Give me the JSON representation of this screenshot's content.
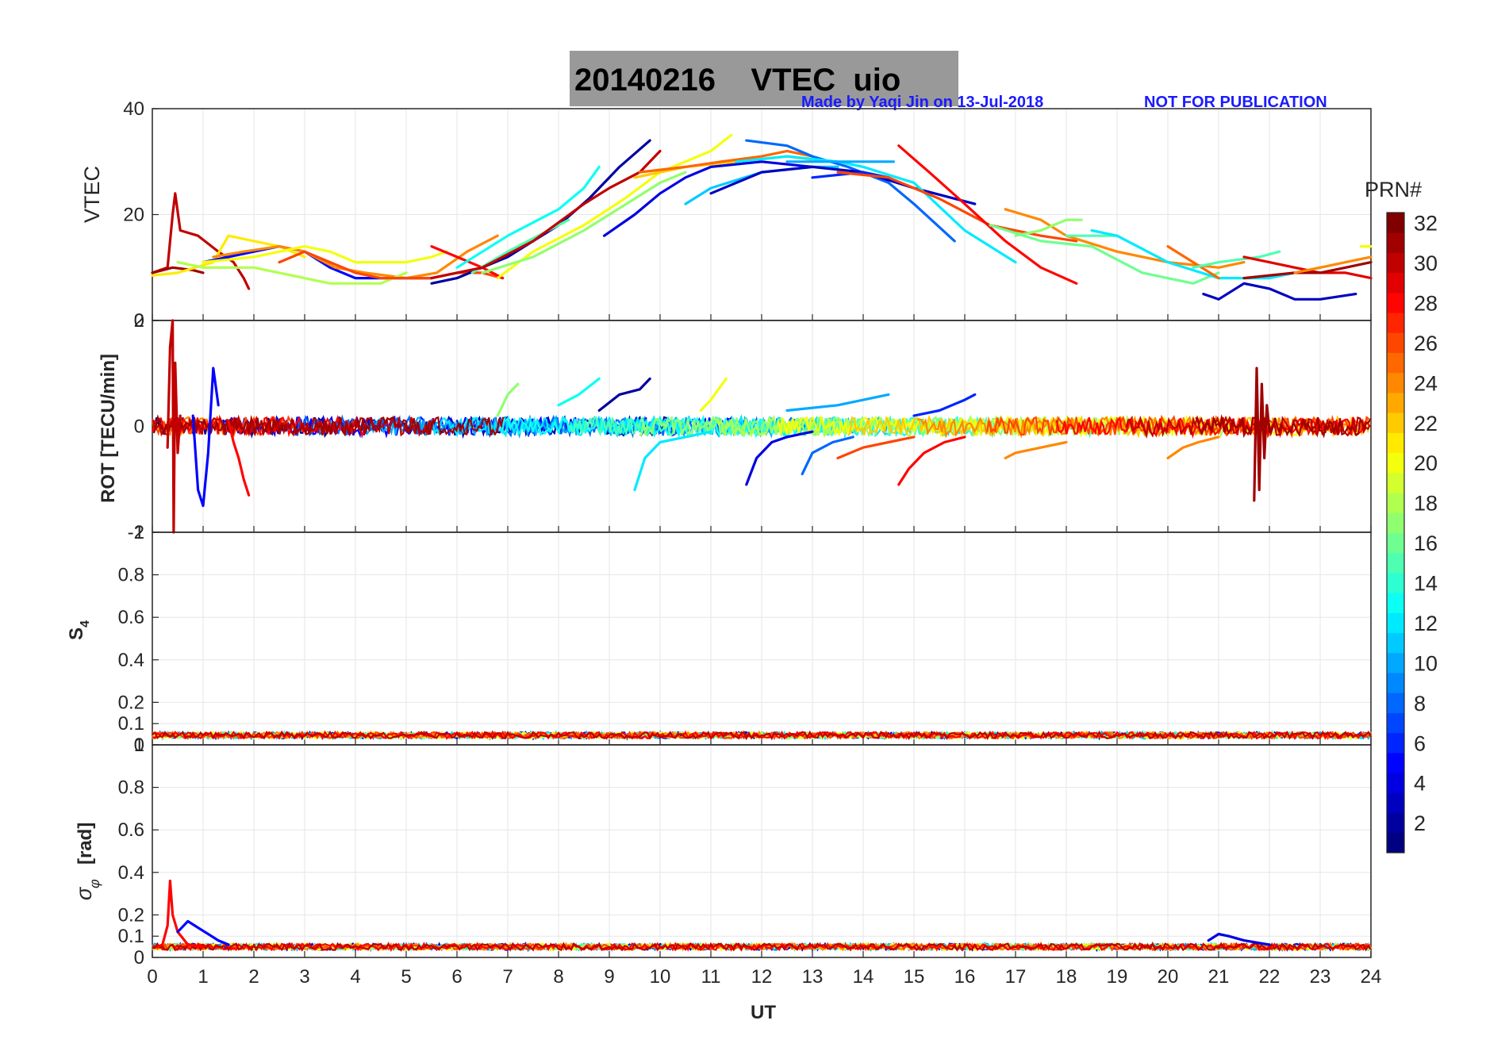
{
  "chart_data": [
    {
      "type": "line",
      "panel": "vtec",
      "title": "20140216    VTEC  uio",
      "ylabel": "VTEC",
      "ylim": [
        0,
        40
      ],
      "yticks": [
        0,
        20,
        40
      ],
      "xlim": [
        0,
        24
      ],
      "series": [
        {
          "prn": 30,
          "x": [
            0,
            0.3,
            0.4,
            0.45,
            0.55,
            0.9,
            1.3,
            1.6,
            1.8,
            1.9
          ],
          "y": [
            9,
            10,
            20,
            24,
            17,
            16,
            13,
            11,
            8,
            6
          ]
        },
        {
          "prn": 31,
          "x": [
            0,
            0.4,
            0.8,
            1.0
          ],
          "y": [
            9,
            10,
            9.5,
            9
          ]
        },
        {
          "prn": 21,
          "x": [
            0,
            0.5,
            1.2,
            1.5,
            2.0,
            2.5,
            3.0
          ],
          "y": [
            8.5,
            9,
            11,
            16,
            15,
            14,
            12
          ]
        },
        {
          "prn": 5,
          "x": [
            1.0,
            1.5,
            2.0,
            2.5,
            3.0,
            3.5,
            4.0,
            4.5,
            5.0,
            5.5
          ],
          "y": [
            11,
            12,
            13,
            14,
            13,
            10,
            8,
            8,
            8,
            8
          ]
        },
        {
          "prn": 24,
          "x": [
            1.2,
            1.8,
            2.5,
            3.0,
            3.6,
            4.2,
            5.0,
            5.6,
            6.2,
            6.8
          ],
          "y": [
            12,
            13,
            14,
            13,
            10,
            9,
            8,
            9,
            13,
            16
          ]
        },
        {
          "prn": 18,
          "x": [
            0.5,
            1.0,
            2.0,
            2.5,
            3.5,
            4.5,
            5.0
          ],
          "y": [
            11,
            10,
            10,
            9,
            7,
            7,
            9
          ]
        },
        {
          "prn": 20,
          "x": [
            1.0,
            2.0,
            3.0,
            3.5,
            4.0,
            5.0,
            5.5,
            5.8
          ],
          "y": [
            11,
            12,
            14,
            13,
            11,
            11,
            12,
            13
          ]
        },
        {
          "prn": 26,
          "x": [
            2.5,
            3.0,
            3.5,
            4.0,
            4.5,
            5.0,
            5.5,
            6.0,
            6.5,
            6.9
          ],
          "y": [
            11,
            13,
            11,
            9,
            8,
            8,
            8,
            9,
            9,
            8
          ]
        },
        {
          "prn": 28,
          "x": [
            5.5,
            6.0,
            6.5,
            6.9
          ],
          "y": [
            14,
            12,
            10,
            8
          ]
        },
        {
          "prn": 2,
          "x": [
            5.5,
            6.0,
            7.0,
            8.0,
            8.6,
            9.2,
            9.8
          ],
          "y": [
            7,
            8,
            12,
            18,
            23,
            29,
            34
          ]
        },
        {
          "prn": 13,
          "x": [
            6.0,
            7.0,
            8.0,
            8.5,
            8.8
          ],
          "y": [
            10,
            16,
            21,
            25,
            29
          ]
        },
        {
          "prn": 15,
          "x": [
            6.3,
            7.0,
            7.8,
            8.2
          ],
          "y": [
            9,
            13,
            17,
            19
          ]
        },
        {
          "prn": 30,
          "x": [
            5.5,
            6.5,
            7.5,
            8.5,
            9.0,
            9.6,
            10.0
          ],
          "y": [
            8,
            10,
            15,
            22,
            25,
            28,
            32
          ]
        },
        {
          "prn": 20,
          "x": [
            6.8,
            7.5,
            8.5,
            9.3,
            10.0,
            11.0,
            11.4
          ],
          "y": [
            8,
            13,
            18,
            23,
            28,
            32,
            35
          ]
        },
        {
          "prn": 17,
          "x": [
            6.5,
            7.5,
            8.5,
            9.5,
            10.0,
            10.5
          ],
          "y": [
            9,
            12,
            17,
            23,
            26,
            28
          ]
        },
        {
          "prn": 4,
          "x": [
            8.9,
            9.5,
            10.0,
            10.5,
            11.0,
            12.0,
            13.0
          ],
          "y": [
            16,
            20,
            24,
            27,
            29,
            30,
            29
          ]
        },
        {
          "prn": 11,
          "x": [
            10.5,
            11.0,
            12.0,
            13.0,
            13.5
          ],
          "y": [
            22,
            25,
            28,
            29,
            29
          ]
        },
        {
          "prn": 22,
          "x": [
            9.5,
            10.5,
            11.5,
            12.5,
            13.3
          ],
          "y": [
            27,
            29,
            30,
            31,
            30
          ]
        },
        {
          "prn": 25,
          "x": [
            9.6,
            10.5,
            11.2,
            12.0,
            12.5,
            13.0
          ],
          "y": [
            28,
            29,
            30,
            31,
            32,
            31
          ]
        },
        {
          "prn": 8,
          "x": [
            11.7,
            12.5,
            13.0,
            13.7,
            14.5,
            15.0,
            15.8
          ],
          "y": [
            34,
            33,
            31,
            29,
            26,
            22,
            15
          ]
        },
        {
          "prn": 3,
          "x": [
            11.0,
            12.0,
            13.0,
            14.0,
            15.0,
            16.2
          ],
          "y": [
            24,
            28,
            29,
            28,
            25,
            22
          ]
        },
        {
          "prn": 12,
          "x": [
            11.5,
            12.5,
            13.5,
            14.0,
            15.0,
            16.0,
            17.0
          ],
          "y": [
            30,
            31,
            30,
            29,
            26,
            17,
            11
          ]
        },
        {
          "prn": 10,
          "x": [
            12.5,
            13.5,
            14.0,
            14.6
          ],
          "y": [
            30,
            30,
            30,
            30
          ]
        },
        {
          "prn": 6,
          "x": [
            13.0,
            14.0,
            14.5
          ],
          "y": [
            27,
            28,
            27
          ]
        },
        {
          "prn": 26,
          "x": [
            13.5,
            14.5,
            15.5,
            16.5,
            17.5,
            18.2
          ],
          "y": [
            28,
            27,
            23,
            18,
            16,
            15
          ]
        },
        {
          "prn": 28,
          "x": [
            14.7,
            15.3,
            16.0,
            16.8,
            17.5,
            18.2
          ],
          "y": [
            33,
            28,
            22,
            15,
            10,
            7
          ]
        },
        {
          "prn": 24,
          "x": [
            16.8,
            17.5,
            18.0,
            19.0,
            20.0,
            21.0,
            21.5
          ],
          "y": [
            21,
            19,
            16,
            13,
            11,
            10,
            11
          ]
        },
        {
          "prn": 17,
          "x": [
            17.0,
            17.5,
            18.0,
            18.3
          ],
          "y": [
            16,
            17,
            19,
            19
          ]
        },
        {
          "prn": 16,
          "x": [
            16.5,
            17.5,
            18.5,
            19.5,
            20.5,
            21.0
          ],
          "y": [
            18,
            15,
            14,
            9,
            7,
            9
          ]
        },
        {
          "prn": 15,
          "x": [
            18.0,
            18.5,
            19.0
          ],
          "y": [
            16,
            16,
            16
          ]
        },
        {
          "prn": 12,
          "x": [
            18.5,
            19.0,
            20.0,
            21.0,
            22.0,
            23.0
          ],
          "y": [
            17,
            16,
            11,
            8,
            8,
            10
          ]
        },
        {
          "prn": 25,
          "x": [
            20.0,
            20.5,
            21.0
          ],
          "y": [
            14,
            11,
            8
          ]
        },
        {
          "prn": 3,
          "x": [
            20.7,
            21.0,
            21.5,
            22.0,
            22.5,
            23.0,
            23.7
          ],
          "y": [
            5,
            4,
            7,
            6,
            4,
            4,
            5
          ]
        },
        {
          "prn": 15,
          "x": [
            20.5,
            21.0,
            21.8,
            22.2
          ],
          "y": [
            10,
            11,
            12,
            13
          ]
        },
        {
          "prn": 29,
          "x": [
            21.5,
            22.0,
            22.5,
            23.0,
            23.5,
            24.0
          ],
          "y": [
            12,
            11,
            10,
            9,
            9,
            8
          ]
        },
        {
          "prn": 31,
          "x": [
            21.5,
            22.5,
            23.0,
            23.5,
            24.0
          ],
          "y": [
            8,
            9,
            9,
            10,
            11
          ]
        },
        {
          "prn": 24,
          "x": [
            22.5,
            23.0,
            23.5,
            24.0
          ],
          "y": [
            9,
            10,
            11,
            12
          ]
        },
        {
          "prn": 20,
          "x": [
            23.8,
            24.0
          ],
          "y": [
            14,
            14
          ]
        }
      ]
    },
    {
      "type": "line",
      "panel": "rot",
      "ylabel": "ROT [TECU/min]",
      "ylim": [
        -2,
        2
      ],
      "yticks": [
        -2,
        0,
        2
      ],
      "xlim": [
        0,
        24
      ],
      "series": [
        {
          "prn": 30,
          "x": [
            0.3,
            0.35,
            0.4,
            0.42,
            0.45,
            0.5,
            0.55
          ],
          "y": [
            -0.4,
            1.5,
            2.0,
            -2.0,
            1.2,
            -0.5,
            0.2
          ]
        },
        {
          "prn": 5,
          "x": [
            0.8,
            0.9,
            1.0,
            1.1,
            1.2,
            1.3
          ],
          "y": [
            0.2,
            -1.2,
            -1.5,
            -0.5,
            1.1,
            0.4
          ]
        },
        {
          "prn": 28,
          "x": [
            1.5,
            1.6,
            1.7,
            1.8,
            1.9
          ],
          "y": [
            0.1,
            -0.3,
            -0.6,
            -1.0,
            -1.3
          ]
        },
        {
          "prn": 2,
          "x": [
            8.8,
            9.2,
            9.6,
            9.8
          ],
          "y": [
            0.3,
            0.6,
            0.7,
            0.9
          ]
        },
        {
          "prn": 13,
          "x": [
            8.0,
            8.4,
            8.8
          ],
          "y": [
            0.4,
            0.6,
            0.9
          ]
        },
        {
          "prn": 20,
          "x": [
            10.8,
            11.0,
            11.3
          ],
          "y": [
            0.3,
            0.5,
            0.9
          ]
        },
        {
          "prn": 17,
          "x": [
            6.8,
            7.0,
            7.2
          ],
          "y": [
            0.2,
            0.6,
            0.8
          ]
        },
        {
          "prn": 12,
          "x": [
            9.5,
            9.7,
            10.0,
            10.5,
            11.0
          ],
          "y": [
            -1.2,
            -0.6,
            -0.3,
            -0.2,
            -0.1
          ]
        },
        {
          "prn": 4,
          "x": [
            11.7,
            11.9,
            12.2,
            12.5,
            13.0
          ],
          "y": [
            -1.1,
            -0.6,
            -0.3,
            -0.2,
            -0.1
          ]
        },
        {
          "prn": 8,
          "x": [
            12.8,
            13.0,
            13.4,
            13.8
          ],
          "y": [
            -0.9,
            -0.5,
            -0.3,
            -0.2
          ]
        },
        {
          "prn": 10,
          "x": [
            12.5,
            13.5,
            14.5
          ],
          "y": [
            0.3,
            0.4,
            0.6
          ]
        },
        {
          "prn": 6,
          "x": [
            15.0,
            15.5,
            16.0,
            16.2
          ],
          "y": [
            0.2,
            0.3,
            0.5,
            0.6
          ]
        },
        {
          "prn": 26,
          "x": [
            13.5,
            14.0,
            14.5,
            15.0
          ],
          "y": [
            -0.6,
            -0.4,
            -0.3,
            -0.2
          ]
        },
        {
          "prn": 28,
          "x": [
            14.7,
            14.9,
            15.2,
            15.6,
            16.0
          ],
          "y": [
            -1.1,
            -0.8,
            -0.5,
            -0.3,
            -0.2
          ]
        },
        {
          "prn": 24,
          "x": [
            16.8,
            17.0,
            17.5,
            18.0
          ],
          "y": [
            -0.6,
            -0.5,
            -0.4,
            -0.3
          ]
        },
        {
          "prn": 24,
          "x": [
            20.0,
            20.3,
            20.6,
            21.0
          ],
          "y": [
            -0.6,
            -0.4,
            -0.3,
            -0.2
          ]
        },
        {
          "prn": 31,
          "x": [
            21.7,
            21.75,
            21.8,
            21.85,
            21.9,
            21.95,
            22.0
          ],
          "y": [
            -1.4,
            1.1,
            -1.2,
            0.8,
            -0.6,
            0.4,
            -0.1
          ]
        }
      ]
    },
    {
      "type": "line",
      "panel": "s4",
      "ylabel": "S4",
      "ylim": [
        0,
        1
      ],
      "yticks": [
        0,
        0.1,
        0.2,
        0.4,
        0.6,
        0.8,
        1
      ],
      "xlim": [
        0,
        24
      ]
    },
    {
      "type": "line",
      "panel": "sigma_phi",
      "ylabel": "σφ [rad]",
      "ylim": [
        0,
        1
      ],
      "yticks": [
        0,
        0.1,
        0.2,
        0.4,
        0.6,
        0.8,
        1
      ],
      "xlim": [
        0,
        24
      ],
      "xlabel": "UT",
      "xticks": [
        0,
        1,
        2,
        3,
        4,
        5,
        6,
        7,
        8,
        9,
        10,
        11,
        12,
        13,
        14,
        15,
        16,
        17,
        18,
        19,
        20,
        21,
        22,
        23,
        24
      ],
      "series": [
        {
          "prn": 28,
          "x": [
            0.1,
            0.2,
            0.3,
            0.35,
            0.4,
            0.5,
            0.7,
            1.0
          ],
          "y": [
            0.05,
            0.06,
            0.15,
            0.36,
            0.2,
            0.12,
            0.06,
            0.05
          ]
        },
        {
          "prn": 5,
          "x": [
            0.5,
            0.7,
            0.9,
            1.1,
            1.3,
            1.5
          ],
          "y": [
            0.12,
            0.17,
            0.14,
            0.11,
            0.08,
            0.06
          ]
        },
        {
          "prn": 4,
          "x": [
            20.8,
            21.0,
            21.2,
            21.5,
            22.0
          ],
          "y": [
            0.08,
            0.11,
            0.1,
            0.08,
            0.06
          ]
        }
      ]
    }
  ],
  "labels": {
    "title": "20140216    VTEC  uio",
    "made_by": "Made by Yaqi Jin on 13-Jul-2018",
    "not_for_pub": "NOT FOR PUBLICATION",
    "colorbar_title": "PRN#",
    "colorbar_ticks": [
      "2",
      "4",
      "6",
      "8",
      "10",
      "12",
      "14",
      "16",
      "18",
      "20",
      "22",
      "24",
      "26",
      "28",
      "30",
      "32"
    ],
    "xlabel": "UT",
    "vtec_ylabel": "VTEC",
    "rot_ylabel": "ROT [TECU/min]",
    "s4_ylabel_main": "S",
    "s4_ylabel_sub": "4",
    "sig_ylabel_main": "σ",
    "sig_ylabel_sub": "φ",
    "sig_ylabel_unit": "[rad]"
  },
  "colors": {
    "title_bg": "#999999",
    "note": "#1a1aff",
    "grid": "#e6e6e6",
    "axis": "#262626"
  }
}
